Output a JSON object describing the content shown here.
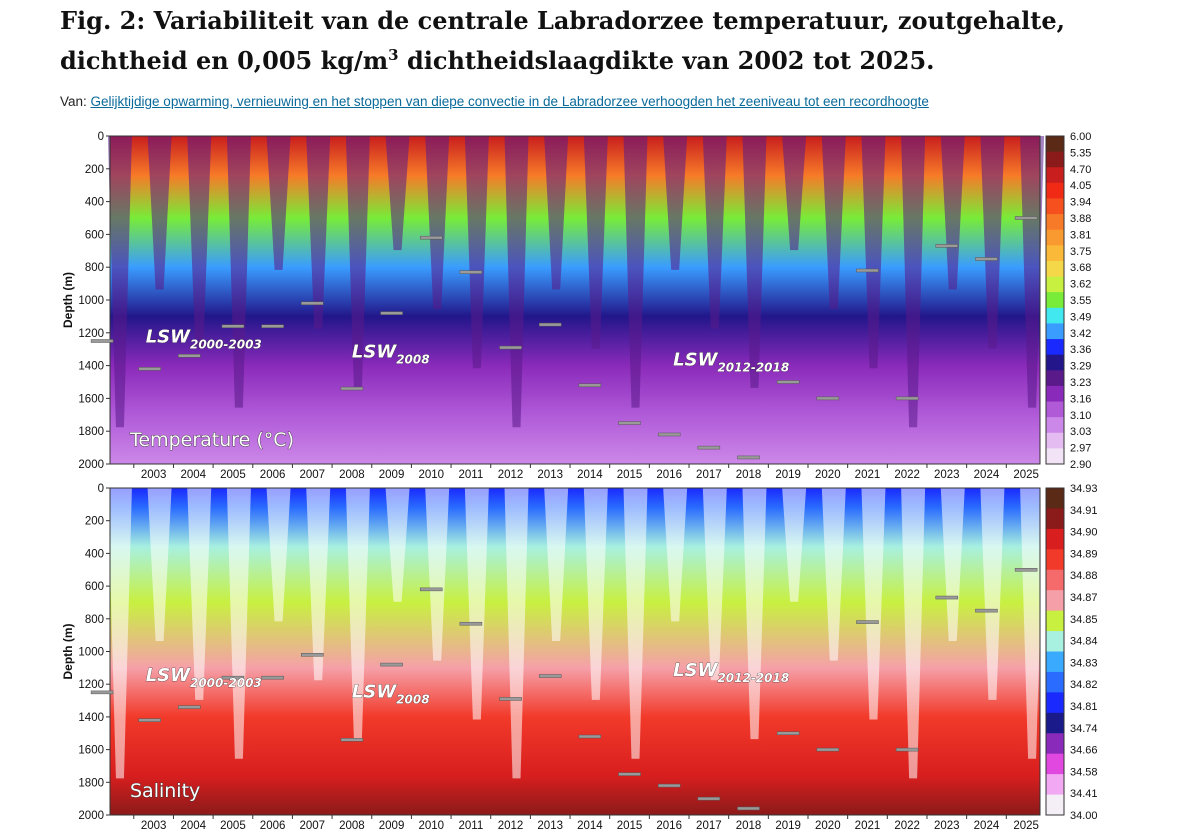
{
  "header": {
    "title_part1": "Fig. 2: Variabiliteit van de centrale Labradorzee temperatuur, zoutgehalte, dichtheid en 0,005 kg/m",
    "title_sup": "3",
    "title_part2": " dichtheidslaagdikte van 2002 tot 2025.",
    "source_prefix": "Van: ",
    "source_link": "Gelijktijdige opwarming, vernieuwing en het stoppen van diepe convectie in de Labradorzee verhoogden het zeeniveau tot een recordhoogte"
  },
  "chart_data": [
    {
      "type": "heatmap",
      "panel_label": "Temperature (°C)",
      "ylabel": "Depth (m)",
      "x_ticks": [
        "2003",
        "2004",
        "2005",
        "2006",
        "2007",
        "2008",
        "2009",
        "2010",
        "2011",
        "2012",
        "2013",
        "2014",
        "2015",
        "2016",
        "2017",
        "2018",
        "2019",
        "2020",
        "2021",
        "2022",
        "2023",
        "2024",
        "2025"
      ],
      "y_ticks": [
        "0",
        "200",
        "400",
        "600",
        "800",
        "1000",
        "1200",
        "1400",
        "1600",
        "1800",
        "2000"
      ],
      "ylim": [
        2000,
        0
      ],
      "colorbar_ticks": [
        "6.00",
        "5.35",
        "4.70",
        "4.05",
        "3.94",
        "3.88",
        "3.81",
        "3.75",
        "3.68",
        "3.62",
        "3.55",
        "3.49",
        "3.42",
        "3.36",
        "3.29",
        "3.23",
        "3.16",
        "3.10",
        "3.03",
        "2.97",
        "2.90"
      ],
      "colorbar_colors": [
        "#5a2a16",
        "#8b1a1a",
        "#c81e1e",
        "#f02a14",
        "#f5501e",
        "#f77a28",
        "#f99a30",
        "#fbb93a",
        "#f5d84a",
        "#c8f040",
        "#78ec38",
        "#42e8f0",
        "#3a9cff",
        "#1a2aff",
        "#22168a",
        "#5a1a8a",
        "#8a2aba",
        "#b05ad8",
        "#cc88e8",
        "#e4bcf2",
        "#f2e4f6"
      ],
      "annotations": [
        {
          "prefix": "LSW",
          "sub": "2000-2003",
          "year": 2003.3,
          "depth": 1260
        },
        {
          "prefix": "LSW",
          "sub": "2008",
          "year": 2008.5,
          "depth": 1350
        },
        {
          "prefix": "LSW",
          "sub": "2012-2018",
          "year": 2016.6,
          "depth": 1400
        }
      ]
    },
    {
      "type": "heatmap",
      "panel_label": "Salinity",
      "ylabel": "Depth (m)",
      "x_ticks": [
        "2003",
        "2004",
        "2005",
        "2006",
        "2007",
        "2008",
        "2009",
        "2010",
        "2011",
        "2012",
        "2013",
        "2014",
        "2015",
        "2016",
        "2017",
        "2018",
        "2019",
        "2020",
        "2021",
        "2022",
        "2023",
        "2024",
        "2025"
      ],
      "y_ticks": [
        "0",
        "200",
        "400",
        "600",
        "800",
        "1000",
        "1200",
        "1400",
        "1600",
        "1800",
        "2000"
      ],
      "ylim": [
        2000,
        0
      ],
      "colorbar_ticks": [
        "34.93",
        "34.91",
        "34.90",
        "34.89",
        "34.88",
        "34.87",
        "34.85",
        "34.84",
        "34.83",
        "34.82",
        "34.81",
        "34.74",
        "34.66",
        "34.58",
        "34.41",
        "34.00"
      ],
      "colorbar_colors": [
        "#5a2a16",
        "#8b1a1a",
        "#d81e1e",
        "#f23a2a",
        "#f56a6a",
        "#f5a0a8",
        "#c8f040",
        "#a8f0e0",
        "#3aaaff",
        "#2a6cff",
        "#1a2aff",
        "#1a1a8a",
        "#8a2aba",
        "#e048e0",
        "#f2a8f2",
        "#f4eef6"
      ],
      "annotations": [
        {
          "prefix": "LSW",
          "sub": "2000-2003",
          "year": 2003.3,
          "depth": 1180
        },
        {
          "prefix": "LSW",
          "sub": "2008",
          "year": 2008.5,
          "depth": 1280
        },
        {
          "prefix": "LSW",
          "sub": "2012-2018",
          "year": 2016.6,
          "depth": 1150
        }
      ]
    }
  ],
  "layer_markers": [
    {
      "year": 2002.2,
      "depth": 1250
    },
    {
      "year": 2003.4,
      "depth": 1420
    },
    {
      "year": 2004.4,
      "depth": 1340
    },
    {
      "year": 2005.5,
      "depth": 1160
    },
    {
      "year": 2006.5,
      "depth": 1160
    },
    {
      "year": 2007.5,
      "depth": 1020
    },
    {
      "year": 2008.5,
      "depth": 1540
    },
    {
      "year": 2009.5,
      "depth": 1080
    },
    {
      "year": 2010.5,
      "depth": 620
    },
    {
      "year": 2011.5,
      "depth": 830
    },
    {
      "year": 2012.5,
      "depth": 1290
    },
    {
      "year": 2013.5,
      "depth": 1150
    },
    {
      "year": 2014.5,
      "depth": 1520
    },
    {
      "year": 2015.5,
      "depth": 1750
    },
    {
      "year": 2016.5,
      "depth": 1820
    },
    {
      "year": 2017.5,
      "depth": 1900
    },
    {
      "year": 2018.5,
      "depth": 1960
    },
    {
      "year": 2019.5,
      "depth": 1500
    },
    {
      "year": 2020.5,
      "depth": 1600
    },
    {
      "year": 2021.5,
      "depth": 820
    },
    {
      "year": 2022.5,
      "depth": 1600
    },
    {
      "year": 2023.5,
      "depth": 670
    },
    {
      "year": 2024.5,
      "depth": 750
    },
    {
      "year": 2025.5,
      "depth": 500
    }
  ]
}
